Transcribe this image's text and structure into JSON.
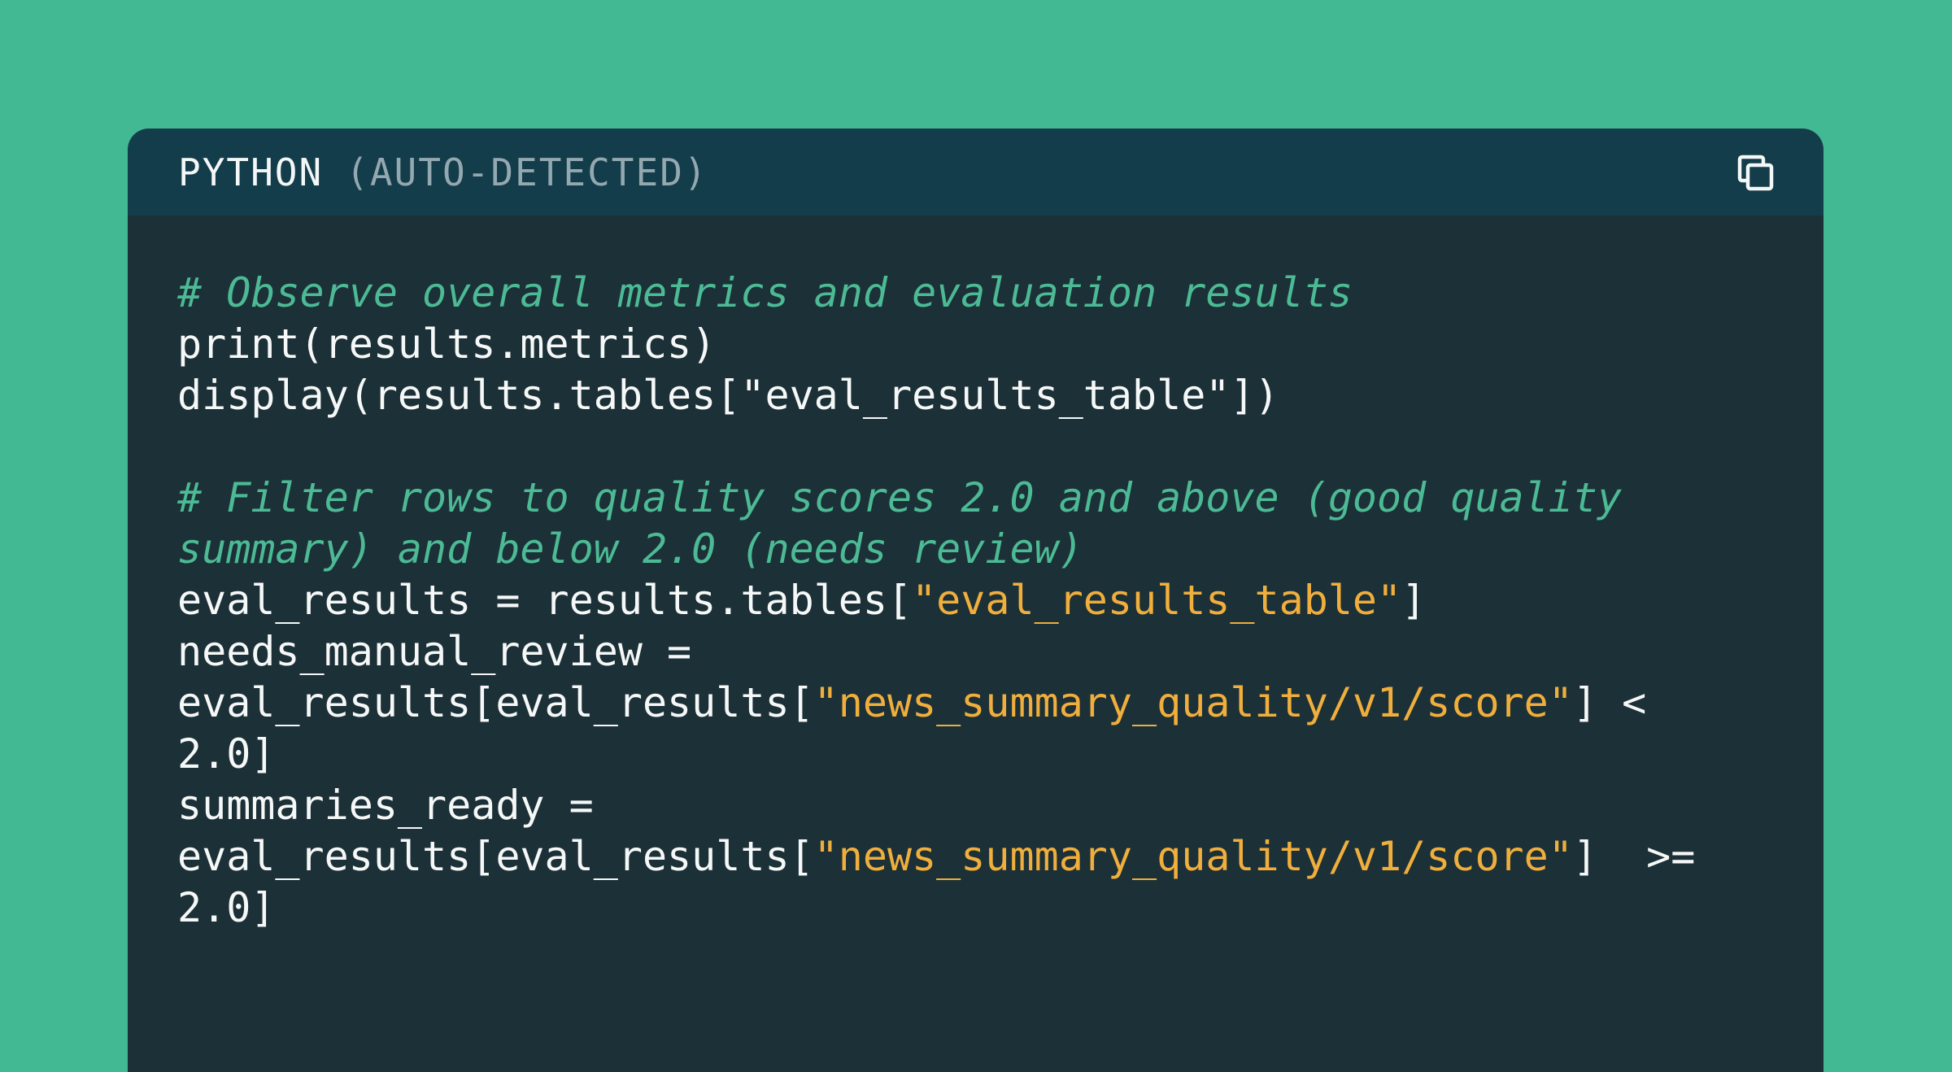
{
  "page": {
    "background": "#42b992"
  },
  "code_panel": {
    "header": {
      "language_label": "PYTHON",
      "detection_label": "(AUTO-DETECTED)",
      "background": "#133d4a",
      "language_color": "#f4f7f7",
      "detection_color": "#93a8b0",
      "copy_icon": "copy-icon"
    },
    "body": {
      "background": "#1c3037",
      "colors": {
        "plain": "#f6f8f8",
        "comment": "#4cba94",
        "string": "#f0ae3c"
      },
      "lines": [
        {
          "segments": [
            {
              "type": "comment",
              "text": "# Observe overall metrics and evaluation results"
            }
          ]
        },
        {
          "segments": [
            {
              "type": "plain",
              "text": "print(results.metrics)"
            }
          ]
        },
        {
          "segments": [
            {
              "type": "plain",
              "text": "display(results.tables[\"eval_results_table\"])"
            }
          ]
        },
        {
          "segments": []
        },
        {
          "segments": [
            {
              "type": "comment",
              "text": "# Filter rows to quality scores 2.0 and above (good quality"
            }
          ]
        },
        {
          "segments": [
            {
              "type": "comment",
              "text": "summary) and below 2.0 (needs review)"
            }
          ]
        },
        {
          "segments": [
            {
              "type": "plain",
              "text": "eval_results = results.tables["
            },
            {
              "type": "string",
              "text": "\"eval_results_table\""
            },
            {
              "type": "plain",
              "text": "]"
            }
          ]
        },
        {
          "segments": [
            {
              "type": "plain",
              "text": "needs_manual_review ="
            }
          ]
        },
        {
          "segments": [
            {
              "type": "plain",
              "text": "eval_results[eval_results["
            },
            {
              "type": "string",
              "text": "\"news_summary_quality/v1/score\""
            },
            {
              "type": "plain",
              "text": "] <"
            }
          ]
        },
        {
          "segments": [
            {
              "type": "plain",
              "text": "2.0]"
            }
          ]
        },
        {
          "segments": [
            {
              "type": "plain",
              "text": "summaries_ready ="
            }
          ]
        },
        {
          "segments": [
            {
              "type": "plain",
              "text": "eval_results[eval_results["
            },
            {
              "type": "string",
              "text": "\"news_summary_quality/v1/score\""
            },
            {
              "type": "plain",
              "text": "]  >="
            }
          ]
        },
        {
          "segments": [
            {
              "type": "plain",
              "text": "2.0]"
            }
          ]
        }
      ]
    }
  }
}
